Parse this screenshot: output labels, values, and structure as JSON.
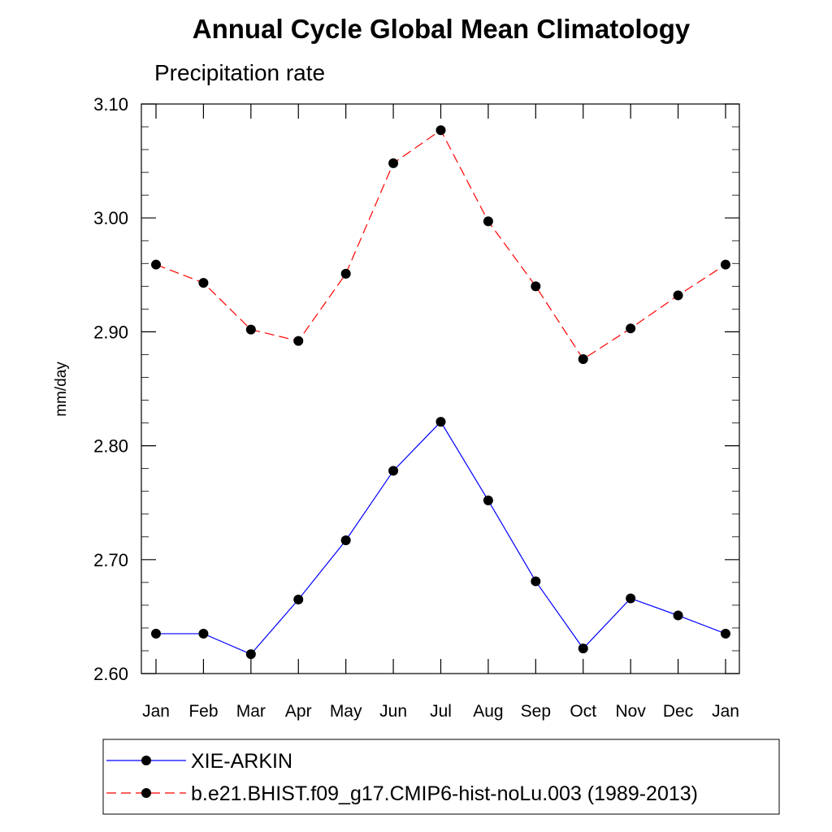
{
  "chart_data": {
    "type": "line",
    "title": "Annual Cycle Global Mean Climatology",
    "subtitle": "Precipitation rate",
    "xlabel": "",
    "ylabel": "mm/day",
    "categories": [
      "Jan",
      "Feb",
      "Mar",
      "Apr",
      "May",
      "Jun",
      "Jul",
      "Aug",
      "Sep",
      "Oct",
      "Nov",
      "Dec",
      "Jan"
    ],
    "ylim": [
      2.6,
      3.1
    ],
    "yticks": [
      "2.60",
      "2.70",
      "2.80",
      "2.90",
      "3.00",
      "3.10"
    ],
    "grid": false,
    "legend_position": "bottom",
    "series": [
      {
        "name": "XIE-ARKIN",
        "color": "#0000ff",
        "line_style": "solid",
        "marker": "filled-circle",
        "values": [
          2.635,
          2.635,
          2.617,
          2.665,
          2.717,
          2.778,
          2.821,
          2.752,
          2.681,
          2.622,
          2.666,
          2.651,
          2.635
        ]
      },
      {
        "name": "b.e21.BHIST.f09_g17.CMIP6-hist-noLu.003 (1989-2013)",
        "color": "#ff0000",
        "line_style": "dashed",
        "marker": "filled-circle",
        "values": [
          2.959,
          2.943,
          2.902,
          2.892,
          2.951,
          3.048,
          3.077,
          2.997,
          2.94,
          2.876,
          2.903,
          2.932,
          2.959
        ]
      }
    ]
  }
}
